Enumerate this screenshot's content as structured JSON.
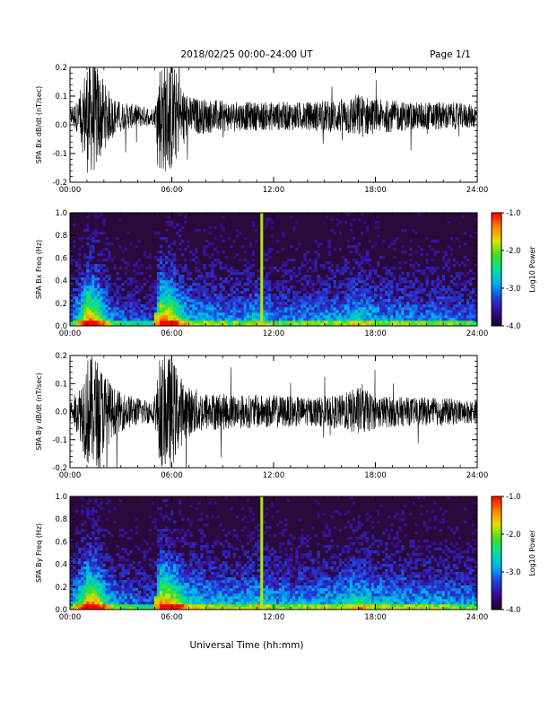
{
  "header": {
    "title": "2018/02/25  00:00–24:00 UT",
    "page": "Page 1/1"
  },
  "colors": {
    "trace": "#000000",
    "background": "#ffffff",
    "spectrogram_bg": "#2a0a3a",
    "colormap": [
      "#1a0030",
      "#3a0a8a",
      "#2040e0",
      "#00b0f0",
      "#00e0a0",
      "#40e020",
      "#e0e000",
      "#ff8000",
      "#ff0000"
    ]
  },
  "chart_data": [
    {
      "type": "line",
      "panel": "bx-timeseries",
      "ylabel": "SPA Bx dB/dt (nT/sec)",
      "ylim": [
        -0.2,
        0.2
      ],
      "yticks": [
        "-0.2",
        "-0.1",
        "0.0",
        "0.1",
        "0.2"
      ],
      "xlim": [
        0,
        24
      ],
      "xticks": [
        "00:00",
        "06:00",
        "12:00",
        "18:00",
        "24:00"
      ],
      "envelope": {
        "x": [
          0,
          0.5,
          1.0,
          1.5,
          2.0,
          2.5,
          3.0,
          4.0,
          5.0,
          5.3,
          5.6,
          6.0,
          6.5,
          7.0,
          8.0,
          10.0,
          12.0,
          14.0,
          16.0,
          17.0,
          18.0,
          20.0,
          22.0,
          24.0
        ],
        "amplitude": [
          0.03,
          0.06,
          0.2,
          0.2,
          0.12,
          0.07,
          0.05,
          0.04,
          0.03,
          0.2,
          0.2,
          0.2,
          0.12,
          0.07,
          0.06,
          0.05,
          0.05,
          0.05,
          0.06,
          0.08,
          0.06,
          0.05,
          0.05,
          0.04
        ]
      },
      "baseline": 0.03
    },
    {
      "type": "heatmap",
      "panel": "bx-spectrogram",
      "ylabel": "SPA Bx Freq (Hz)",
      "ylim": [
        0.0,
        1.0
      ],
      "yticks": [
        "0.0",
        "0.2",
        "0.4",
        "0.6",
        "0.8",
        "1.0"
      ],
      "xlim": [
        0,
        24
      ],
      "xticks": [
        "00:00",
        "06:00",
        "12:00",
        "18:00",
        "24:00"
      ],
      "colorbar": {
        "label": "Log10 Power",
        "range": [
          -4.0,
          -1.0
        ],
        "ticks": [
          "-1.0",
          "-2.0",
          "-3.0",
          "-4.0"
        ]
      },
      "intensity_profile": {
        "x": [
          0,
          0.5,
          1.0,
          1.5,
          2.0,
          2.5,
          3.0,
          4.0,
          5.0,
          5.3,
          5.6,
          6.0,
          6.5,
          7.0,
          8.0,
          10.0,
          11.3,
          12.0,
          14.0,
          16.0,
          17.0,
          18.0,
          20.0,
          22.0,
          24.0
        ],
        "level": [
          0.3,
          0.5,
          0.9,
          0.85,
          0.55,
          0.35,
          0.3,
          0.25,
          0.2,
          0.95,
          0.9,
          0.85,
          0.6,
          0.45,
          0.4,
          0.35,
          0.5,
          0.35,
          0.35,
          0.4,
          0.5,
          0.4,
          0.35,
          0.35,
          0.3
        ]
      },
      "line_feature_x": 11.3,
      "gap_x": [
        5.0,
        5.25
      ]
    },
    {
      "type": "line",
      "panel": "by-timeseries",
      "ylabel": "SPA By dB/dt (nT/sec)",
      "ylim": [
        -0.2,
        0.2
      ],
      "yticks": [
        "-0.2",
        "-0.1",
        "0.0",
        "0.1",
        "0.2"
      ],
      "xlim": [
        0,
        24
      ],
      "xticks": [
        "00:00",
        "06:00",
        "12:00",
        "18:00",
        "24:00"
      ],
      "envelope": {
        "x": [
          0,
          0.5,
          1.0,
          1.5,
          2.0,
          2.5,
          3.0,
          4.0,
          5.0,
          5.3,
          5.6,
          6.0,
          6.5,
          7.0,
          8.0,
          10.0,
          12.0,
          14.0,
          16.0,
          17.0,
          18.0,
          20.0,
          22.0,
          24.0
        ],
        "amplitude": [
          0.04,
          0.08,
          0.2,
          0.2,
          0.15,
          0.09,
          0.07,
          0.05,
          0.04,
          0.2,
          0.2,
          0.2,
          0.13,
          0.09,
          0.07,
          0.06,
          0.06,
          0.05,
          0.06,
          0.09,
          0.06,
          0.05,
          0.05,
          0.04
        ]
      },
      "baseline": 0.0
    },
    {
      "type": "heatmap",
      "panel": "by-spectrogram",
      "ylabel": "SPA By Freq (Hz)",
      "ylim": [
        0.0,
        1.0
      ],
      "yticks": [
        "0.0",
        "0.2",
        "0.4",
        "0.6",
        "0.8",
        "1.0"
      ],
      "xlim": [
        0,
        24
      ],
      "xticks": [
        "00:00",
        "06:00",
        "12:00",
        "18:00",
        "24:00"
      ],
      "colorbar": {
        "label": "Log10 Power",
        "range": [
          -4.0,
          -1.0
        ],
        "ticks": [
          "-1.0",
          "-2.0",
          "-3.0",
          "-4.0"
        ]
      },
      "intensity_profile": {
        "x": [
          0,
          0.5,
          1.0,
          1.5,
          2.0,
          2.5,
          3.0,
          4.0,
          5.0,
          5.3,
          5.6,
          6.0,
          6.5,
          7.0,
          8.0,
          10.0,
          11.3,
          12.0,
          14.0,
          16.0,
          17.0,
          18.0,
          20.0,
          22.0,
          24.0
        ],
        "level": [
          0.35,
          0.55,
          0.9,
          0.85,
          0.6,
          0.4,
          0.35,
          0.3,
          0.25,
          0.95,
          0.9,
          0.85,
          0.65,
          0.5,
          0.45,
          0.4,
          0.5,
          0.4,
          0.4,
          0.45,
          0.55,
          0.45,
          0.4,
          0.4,
          0.35
        ]
      },
      "line_feature_x": 11.3,
      "gap_x": [
        5.0,
        5.25
      ]
    }
  ],
  "footer": {
    "xlabel": "Universal Time (hh:mm)"
  }
}
